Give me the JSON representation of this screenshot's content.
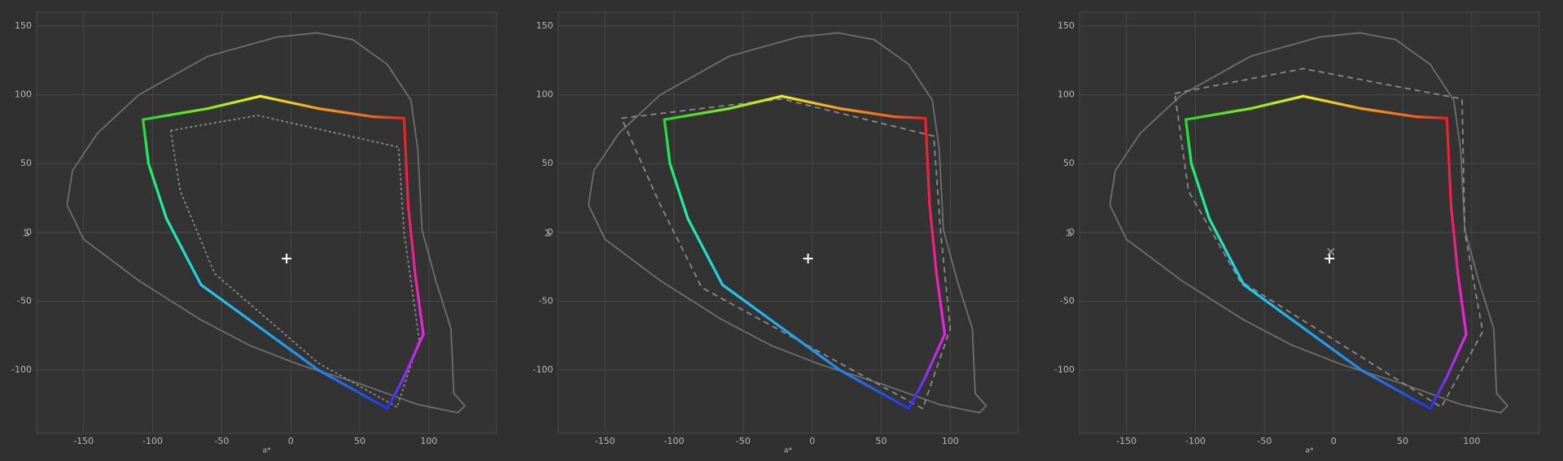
{
  "chart_data": [
    {
      "type": "line",
      "xlabel": "a*",
      "ylabel": "b*",
      "xlim": [
        -184,
        149
      ],
      "ylim": [
        -146,
        160
      ],
      "xticks": [
        -150,
        -100,
        -50,
        0,
        50,
        100
      ],
      "yticks": [
        -100,
        -50,
        0,
        50,
        100,
        150
      ],
      "grid": true,
      "series": [
        {
          "color": "#6e6e6e",
          "dash": "solid",
          "x": [
            -162,
            -158,
            -140,
            -110,
            -60,
            -10,
            19,
            45,
            70,
            87,
            92,
            95,
            105,
            116,
            118,
            126,
            121,
            92,
            50,
            6,
            -30,
            -66,
            -110,
            -150,
            -162
          ],
          "values": [
            20,
            45,
            72,
            100,
            128,
            142,
            145,
            140,
            122,
            96,
            60,
            2,
            -35,
            -70,
            -117,
            -126,
            -131,
            -125,
            -110,
            -96,
            -82,
            -63,
            -35,
            -5,
            20
          ]
        },
        {
          "color": "#8a8a8a",
          "dash": "dotted",
          "x": [
            -87,
            -24,
            78,
            82,
            93,
            77,
            20,
            -55,
            -80,
            -87
          ],
          "values": [
            74,
            85,
            62,
            0,
            -78,
            -127,
            -95,
            -30,
            30,
            74
          ]
        },
        {
          "color": "gradient",
          "dash": "solid",
          "x": [
            -107,
            -60,
            -22,
            20,
            60,
            82,
            85,
            90,
            96,
            82,
            70,
            20,
            -65,
            -90,
            -103,
            -107
          ],
          "values": [
            82,
            90,
            99,
            90,
            84,
            83,
            20,
            -30,
            -74,
            -105,
            -128,
            -100,
            -38,
            10,
            50,
            82
          ],
          "colors": [
            "#22dd22",
            "#88e822",
            "#eeee22",
            "#f0a020",
            "#f06020",
            "#ee2222",
            "#ee2255",
            "#ee22aa",
            "#ee22ee",
            "#8833ee",
            "#2233ee",
            "#2288ee",
            "#22ccee",
            "#22eeaa",
            "#22ee66",
            "#22dd22"
          ]
        }
      ],
      "markers": [
        {
          "shape": "plus",
          "x": -3,
          "y": -19
        }
      ]
    },
    {
      "type": "line",
      "xlabel": "a*",
      "ylabel": "b*",
      "xlim": [
        -184,
        149
      ],
      "ylim": [
        -146,
        160
      ],
      "xticks": [
        -150,
        -100,
        -50,
        0,
        50,
        100
      ],
      "yticks": [
        -100,
        -50,
        0,
        50,
        100,
        150
      ],
      "grid": true,
      "series": [
        {
          "color": "#6e6e6e",
          "dash": "solid",
          "x": [
            -162,
            -158,
            -140,
            -110,
            -60,
            -10,
            19,
            45,
            70,
            87,
            92,
            95,
            105,
            116,
            118,
            126,
            121,
            92,
            50,
            6,
            -30,
            -66,
            -110,
            -150,
            -162
          ],
          "values": [
            20,
            45,
            72,
            100,
            128,
            142,
            145,
            140,
            122,
            96,
            60,
            2,
            -35,
            -70,
            -117,
            -126,
            -131,
            -125,
            -110,
            -96,
            -82,
            -63,
            -35,
            -5,
            20
          ]
        },
        {
          "color": "#8a8a8a",
          "dash": "dashed",
          "x": [
            -138,
            -22,
            88,
            93,
            100,
            80,
            -80,
            -110,
            -138
          ],
          "values": [
            83,
            97,
            70,
            0,
            -70,
            -128,
            -40,
            20,
            83
          ]
        },
        {
          "color": "gradient",
          "dash": "solid",
          "x": [
            -107,
            -60,
            -22,
            20,
            60,
            82,
            85,
            90,
            96,
            82,
            70,
            20,
            -65,
            -90,
            -103,
            -107
          ],
          "values": [
            82,
            90,
            99,
            90,
            84,
            83,
            20,
            -30,
            -74,
            -105,
            -128,
            -100,
            -38,
            10,
            50,
            82
          ],
          "colors": [
            "#22dd22",
            "#88e822",
            "#eeee22",
            "#f0a020",
            "#f06020",
            "#ee2222",
            "#ee2255",
            "#ee22aa",
            "#ee22ee",
            "#8833ee",
            "#2233ee",
            "#2288ee",
            "#22ccee",
            "#22eeaa",
            "#22ee66",
            "#22dd22"
          ]
        }
      ],
      "markers": [
        {
          "shape": "plus",
          "x": -3,
          "y": -19
        }
      ]
    },
    {
      "type": "line",
      "xlabel": "a*",
      "ylabel": "b*",
      "xlim": [
        -184,
        149
      ],
      "ylim": [
        -146,
        160
      ],
      "xticks": [
        -150,
        -100,
        -50,
        0,
        50,
        100
      ],
      "yticks": [
        -100,
        -50,
        0,
        50,
        100,
        150
      ],
      "grid": true,
      "series": [
        {
          "color": "#6e6e6e",
          "dash": "solid",
          "x": [
            -162,
            -158,
            -140,
            -110,
            -60,
            -10,
            19,
            45,
            70,
            87,
            92,
            95,
            105,
            116,
            118,
            126,
            121,
            92,
            50,
            6,
            -30,
            -66,
            -110,
            -150,
            -162
          ],
          "values": [
            20,
            45,
            72,
            100,
            128,
            142,
            145,
            140,
            122,
            96,
            60,
            2,
            -35,
            -70,
            -117,
            -126,
            -131,
            -125,
            -110,
            -96,
            -82,
            -63,
            -35,
            -5,
            20
          ]
        },
        {
          "color": "#8a8a8a",
          "dash": "dashed",
          "x": [
            -115,
            -22,
            93,
            95,
            108,
            78,
            -68,
            -105,
            -115
          ],
          "values": [
            101,
            119,
            97,
            0,
            -72,
            -127,
            -35,
            30,
            101
          ]
        },
        {
          "color": "gradient",
          "dash": "solid",
          "x": [
            -107,
            -60,
            -22,
            20,
            60,
            82,
            85,
            90,
            96,
            82,
            70,
            20,
            -65,
            -90,
            -103,
            -107
          ],
          "values": [
            82,
            90,
            99,
            90,
            84,
            83,
            20,
            -30,
            -74,
            -105,
            -128,
            -100,
            -38,
            10,
            50,
            82
          ],
          "colors": [
            "#22dd22",
            "#88e822",
            "#eeee22",
            "#f0a020",
            "#f06020",
            "#ee2222",
            "#ee2255",
            "#ee22aa",
            "#ee22ee",
            "#8833ee",
            "#2233ee",
            "#2288ee",
            "#22ccee",
            "#22eeaa",
            "#22ee66",
            "#22dd22"
          ]
        }
      ],
      "markers": [
        {
          "shape": "plus",
          "x": -3,
          "y": -19
        },
        {
          "shape": "cross",
          "x": -2,
          "y": -14
        }
      ]
    }
  ]
}
